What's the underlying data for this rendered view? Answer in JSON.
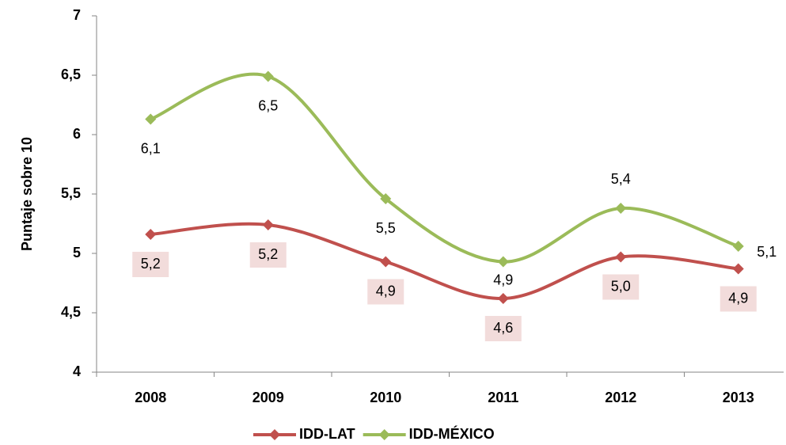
{
  "chart_data": {
    "type": "line",
    "y_label": "Puntaje sobre 10",
    "categories": [
      "2008",
      "2009",
      "2010",
      "2011",
      "2012",
      "2013"
    ],
    "series": [
      {
        "name": "IDD-LAT",
        "color": "#c0504d",
        "values": [
          5.16,
          5.24,
          4.93,
          4.62,
          4.97,
          4.87
        ],
        "value_labels": [
          "5,2",
          "5,2",
          "4,9",
          "4,6",
          "5,0",
          "4,9"
        ]
      },
      {
        "name": "IDD-MÉXICO",
        "color": "#9bbb59",
        "values": [
          6.13,
          6.49,
          5.46,
          4.93,
          5.38,
          5.06
        ],
        "value_labels": [
          "6,1",
          "6,5",
          "5,5",
          "4,9",
          "5,4",
          "5,1"
        ]
      }
    ],
    "ylim": [
      4,
      7
    ],
    "yticks": [
      4,
      {
        "value": 4.5,
        "label": "4,5"
      },
      5,
      {
        "value": 5.5,
        "label": "5,5"
      },
      6,
      {
        "value": 6.5,
        "label": "6,5"
      },
      7
    ],
    "legend": "bottom"
  }
}
